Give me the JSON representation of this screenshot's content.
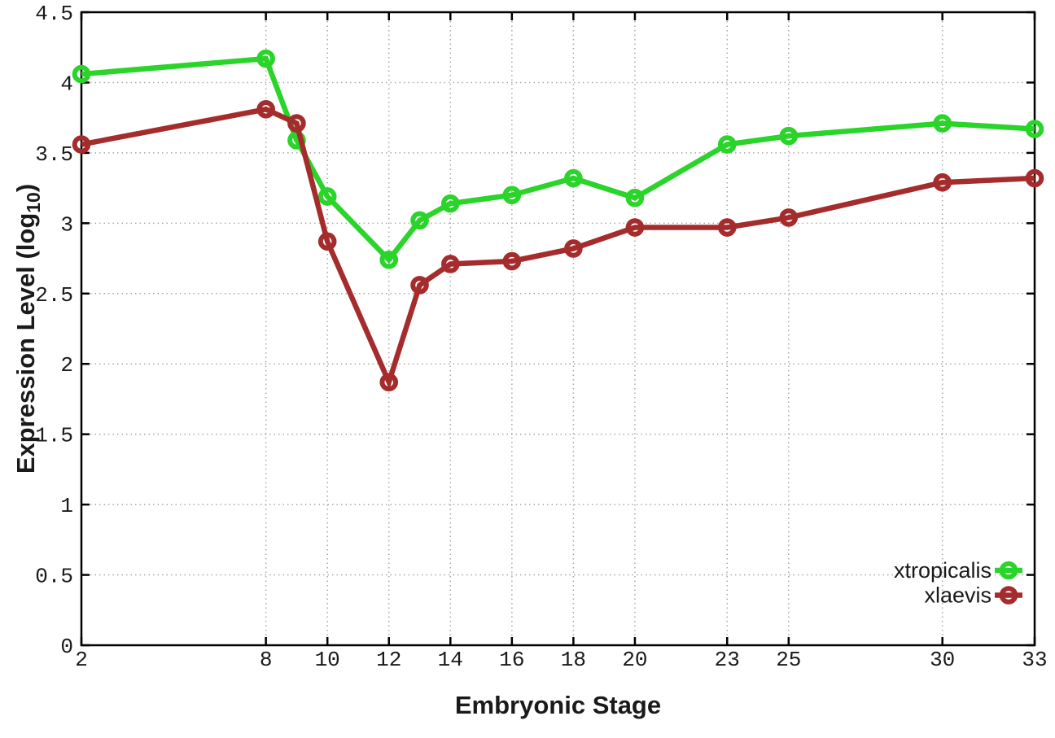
{
  "figure": {
    "background": "#ffffff",
    "border_color": "#000000",
    "grid_color": "#a8a8a8",
    "text_color": "#1a1a1a",
    "xlabel": "Embryonic Stage",
    "ylabel": "Expression Level (log10)",
    "ylabel_parts": {
      "main": "Expression Level (log",
      "sub": "10",
      "suffix": ")"
    }
  },
  "chart_data": {
    "type": "line",
    "title": "",
    "xlabel": "Embryonic Stage",
    "ylabel": "Expression Level (log10)",
    "x": [
      2,
      8,
      9,
      10,
      12,
      13,
      14,
      16,
      18,
      20,
      23,
      25,
      30,
      33
    ],
    "series": [
      {
        "name": "xtropicalis",
        "color": "#2ad42a",
        "marker": "open-circle",
        "values": [
          4.06,
          4.17,
          3.59,
          3.19,
          2.74,
          3.02,
          3.14,
          3.2,
          3.32,
          3.18,
          3.56,
          3.62,
          3.71,
          3.67
        ]
      },
      {
        "name": "xlaevis",
        "color": "#a52c2c",
        "marker": "open-circle",
        "values": [
          3.56,
          3.81,
          3.71,
          2.87,
          1.87,
          2.56,
          2.71,
          2.73,
          2.82,
          2.97,
          2.97,
          3.04,
          3.29,
          3.32
        ]
      }
    ],
    "x_ticks": [
      2,
      8,
      10,
      12,
      14,
      16,
      18,
      20,
      23,
      25,
      30,
      33
    ],
    "y_ticks": [
      0,
      0.5,
      1,
      1.5,
      2,
      2.5,
      3,
      3.5,
      4,
      4.5
    ],
    "xlim": [
      2,
      33
    ],
    "ylim": [
      0,
      4.5
    ],
    "grid": true,
    "grid_style": "dotted",
    "legend_position": "bottom-right",
    "legend": [
      "xtropicalis",
      "xlaevis"
    ]
  }
}
